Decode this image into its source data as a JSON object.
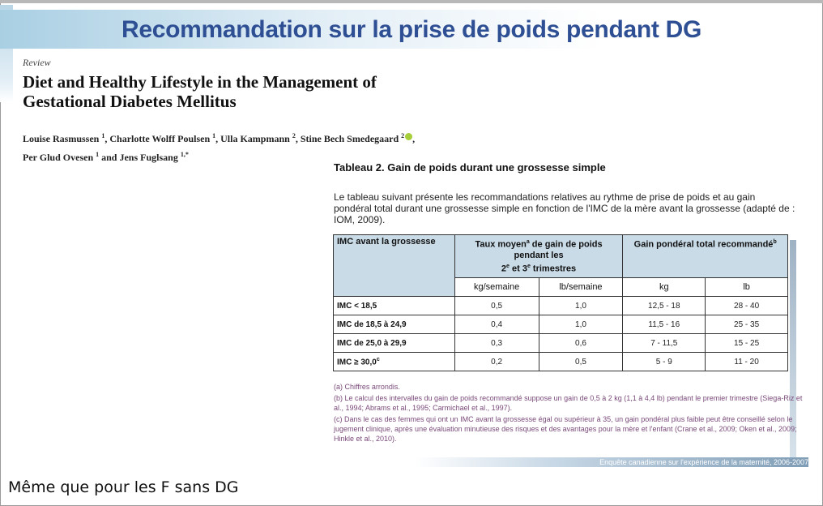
{
  "slide": {
    "title": "Recommandation sur la prise de poids pendant DG",
    "note": "Même que pour les F sans DG"
  },
  "paper": {
    "review_label": "Review",
    "title_line1": "Diet and Healthy Lifestyle in the Management of",
    "title_line2": "Gestational Diabetes Mellitus",
    "authors_line1": [
      {
        "name": "Louise Rasmussen",
        "sup": "1"
      },
      {
        "name": "Charlotte Wolff Poulsen",
        "sup": "1"
      },
      {
        "name": "Ulla Kampmann",
        "sup": "2"
      },
      {
        "name": "Stine Bech Smedegaard",
        "sup": "2"
      }
    ],
    "authors_line2": [
      {
        "name": "Per Glud Ovesen",
        "sup": "1"
      },
      {
        "name": "Jens Fuglsang",
        "sup": "1,*"
      }
    ],
    "and_word": "and"
  },
  "table": {
    "heading": "Tableau 2. Gain de poids durant une grossesse simple",
    "intro": "Le tableau suivant présente les recommandations relatives au rythme de prise de poids et au gain pondéral total durant une grossesse simple en fonction de l'IMC de la mère avant la grossesse (adapté de : IOM, 2009).",
    "header_imc": "IMC avant la grossesse",
    "header_rate_a": "Taux moyen",
    "header_rate_sup": "a",
    "header_rate_b": " de gain de poids pendant les",
    "header_rate_c_2": "2",
    "header_rate_c_e1": "e",
    "header_rate_c_mid": " et 3",
    "header_rate_c_e2": "e",
    "header_rate_c_end": " trimestres",
    "header_total": "Gain pondéral total recommandé",
    "header_total_sup": "b",
    "units": [
      "kg/semaine",
      "lb/semaine",
      "kg",
      "lb"
    ],
    "rows": [
      {
        "label": "IMC < 18,5",
        "label_sup": "",
        "kg_week": "0,5",
        "lb_week": "1,0",
        "kg": "12,5 - 18",
        "lb": "28 - 40"
      },
      {
        "label": "IMC de 18,5 à 24,9",
        "label_sup": "",
        "kg_week": "0,4",
        "lb_week": "1,0",
        "kg": "11,5 - 16",
        "lb": "25 - 35"
      },
      {
        "label": "IMC de 25,0 à 29,9",
        "label_sup": "",
        "kg_week": "0,3",
        "lb_week": "0,6",
        "kg": "7 - 11,5",
        "lb": "15 - 25"
      },
      {
        "label": "IMC ≥ 30,0",
        "label_sup": "c",
        "kg_week": "0,2",
        "lb_week": "0,5",
        "kg": "5 - 9",
        "lb": "11 - 20"
      }
    ],
    "footnotes": [
      "(a) Chiffres arrondis.",
      "(b) Le calcul des intervalles du gain de poids recommandé suppose un gain de 0,5 à 2 kg (1,1 à 4,4 lb) pendant le premier trimestre (Siega-Riz et al., 1994; Abrams et al., 1995; Carmichael et al., 1997).",
      "(c) Dans le cas des femmes qui ont un IMC avant la grossesse égal ou supérieur à 35, un gain pondéral plus faible peut être conseillé selon le jugement clinique, après une évaluation minutieuse des risques et des avantages pour la mère et l'enfant (Crane et al., 2009; Oken et al., 2009; Hinkle et al., 2010)."
    ],
    "source": "Enquête canadienne sur l'expérience de la maternité, 2006-2007"
  },
  "colors": {
    "title": "#2e4f93",
    "header_fill": "#c9dbe7",
    "footnote": "#7a4a7a"
  }
}
